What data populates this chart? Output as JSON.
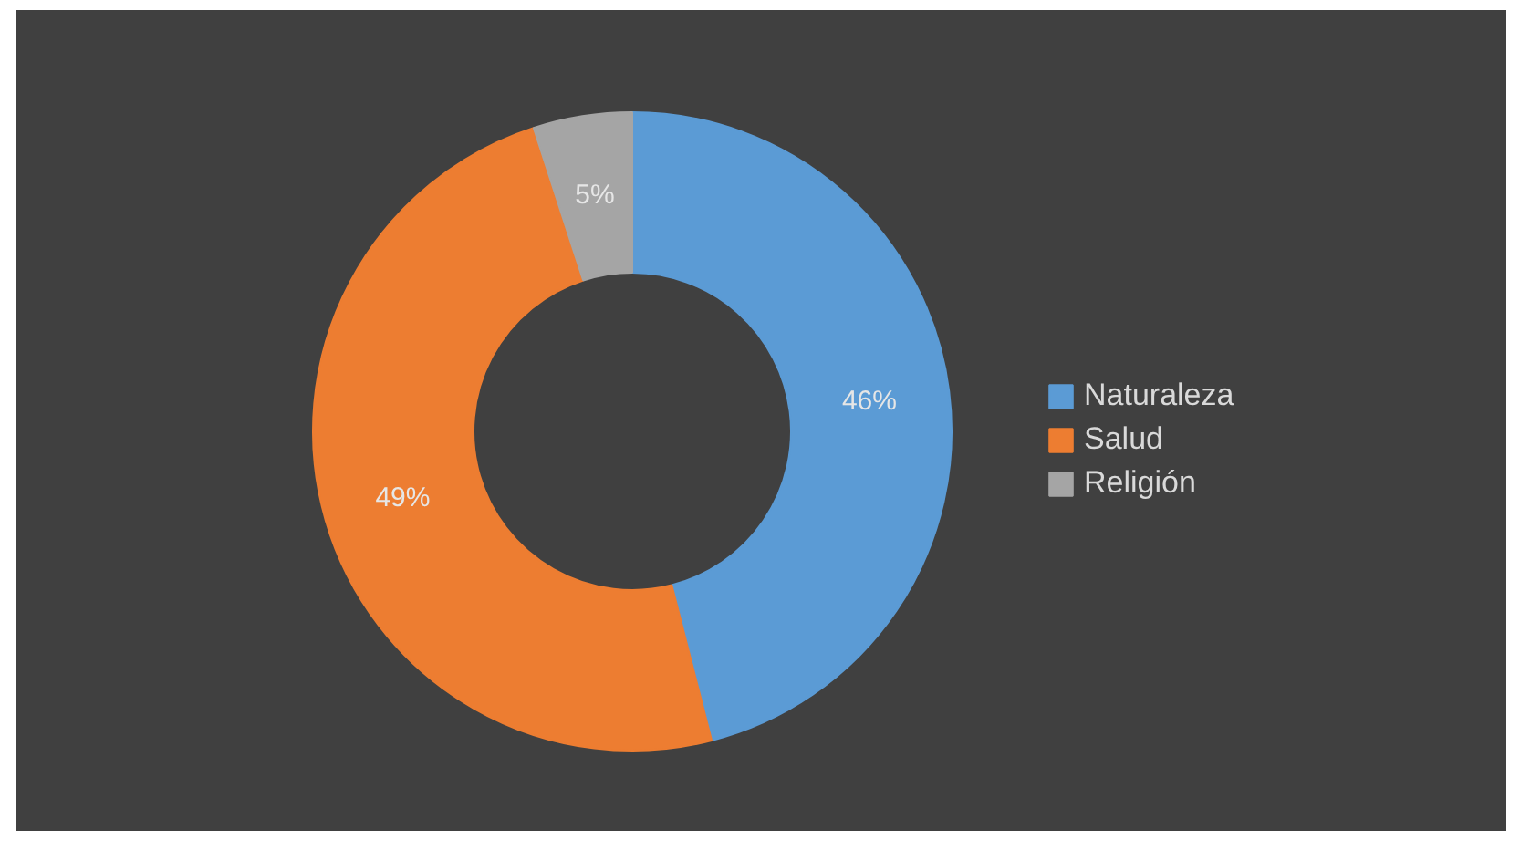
{
  "chart_data": {
    "type": "donut",
    "categories": [
      "Naturaleza",
      "Salud",
      "Religión"
    ],
    "values": [
      46,
      49,
      5
    ],
    "colors": [
      "#5b9bd5",
      "#ed7d31",
      "#a5a5a5"
    ],
    "value_labels": [
      "46%",
      "49%",
      "5%"
    ],
    "legend": "right"
  }
}
